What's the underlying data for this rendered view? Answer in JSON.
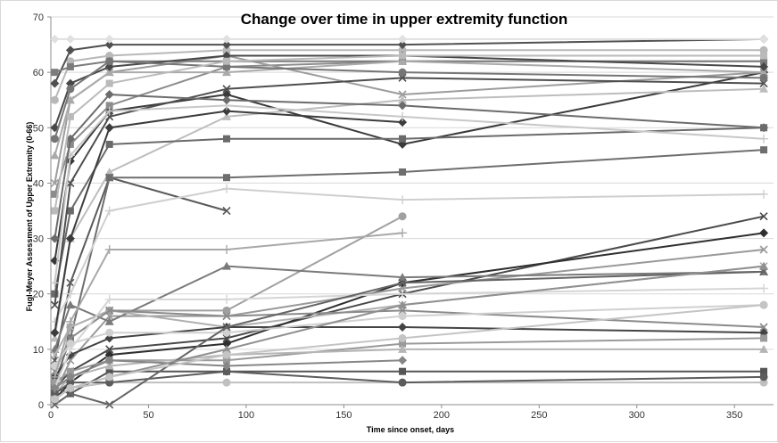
{
  "chart_data": {
    "type": "line",
    "title": "Change over time in upper extremity function",
    "xlabel": "Time since onset, days",
    "ylabel": "Fugl-Meyer Assessment of Upper Extremity (0-66)",
    "xlim": [
      0,
      370
    ],
    "ylim": [
      0,
      70
    ],
    "xticks": [
      0,
      50,
      100,
      150,
      200,
      250,
      300,
      350
    ],
    "yticks": [
      0,
      10,
      20,
      30,
      40,
      50,
      60,
      70
    ],
    "grid": "horizontal",
    "legend": "none",
    "series": [
      {
        "color": "#3a3a3a",
        "marker": "diamond",
        "points": [
          [
            2,
            26
          ],
          [
            10,
            44
          ],
          [
            30,
            53
          ],
          [
            90,
            56
          ],
          [
            180,
            47
          ],
          [
            365,
            60
          ]
        ]
      },
      {
        "color": "#8c8c8c",
        "marker": "square",
        "points": [
          [
            2,
            38
          ],
          [
            10,
            47
          ],
          [
            30,
            54
          ],
          [
            90,
            61
          ],
          [
            180,
            62
          ],
          [
            365,
            62
          ]
        ]
      },
      {
        "color": "#bdbdbd",
        "marker": "triangle",
        "points": [
          [
            2,
            12
          ],
          [
            10,
            30
          ],
          [
            30,
            42
          ],
          [
            90,
            52
          ],
          [
            180,
            55
          ],
          [
            365,
            57
          ]
        ]
      },
      {
        "color": "#5a5a5a",
        "marker": "x",
        "points": [
          [
            2,
            8
          ],
          [
            10,
            22
          ],
          [
            30,
            41
          ],
          [
            90,
            35
          ]
        ]
      },
      {
        "color": "#a0a0a0",
        "marker": "circle",
        "points": [
          [
            2,
            2
          ],
          [
            10,
            14
          ],
          [
            30,
            17
          ],
          [
            90,
            17
          ],
          [
            180,
            34
          ]
        ]
      },
      {
        "color": "#6e6e6e",
        "marker": "square",
        "points": [
          [
            2,
            4
          ],
          [
            10,
            12
          ],
          [
            30,
            41
          ],
          [
            90,
            41
          ],
          [
            180,
            42
          ],
          [
            365,
            46
          ]
        ]
      },
      {
        "color": "#cfcfcf",
        "marker": "plus",
        "points": [
          [
            2,
            15
          ],
          [
            10,
            20
          ],
          [
            30,
            35
          ],
          [
            90,
            39
          ],
          [
            180,
            37
          ],
          [
            365,
            38
          ]
        ]
      },
      {
        "color": "#4a4a4a",
        "marker": "x",
        "points": [
          [
            2,
            3
          ],
          [
            10,
            6
          ],
          [
            30,
            10
          ],
          [
            90,
            12
          ],
          [
            180,
            20
          ],
          [
            365,
            34
          ]
        ]
      },
      {
        "color": "#2f2f2f",
        "marker": "diamond",
        "points": [
          [
            2,
            1
          ],
          [
            10,
            4
          ],
          [
            30,
            9
          ],
          [
            90,
            11
          ],
          [
            180,
            22
          ],
          [
            365,
            31
          ]
        ]
      },
      {
        "color": "#999999",
        "marker": "x",
        "points": [
          [
            2,
            2
          ],
          [
            10,
            8
          ],
          [
            30,
            16
          ],
          [
            90,
            16
          ],
          [
            180,
            21
          ],
          [
            365,
            28
          ]
        ]
      },
      {
        "color": "#7a7a7a",
        "marker": "triangle",
        "points": [
          [
            2,
            10
          ],
          [
            10,
            18
          ],
          [
            30,
            15
          ],
          [
            90,
            25
          ],
          [
            180,
            23
          ],
          [
            365,
            24
          ]
        ]
      },
      {
        "color": "#b0b0b0",
        "marker": "x",
        "points": [
          [
            2,
            9
          ],
          [
            10,
            14
          ],
          [
            30,
            17
          ],
          [
            90,
            14
          ],
          [
            180,
            18
          ],
          [
            365,
            25
          ]
        ]
      },
      {
        "color": "#555555",
        "marker": "square",
        "points": [
          [
            2,
            3
          ],
          [
            10,
            2
          ],
          [
            30,
            6
          ],
          [
            90,
            6
          ],
          [
            180,
            6
          ],
          [
            365,
            6
          ]
        ]
      },
      {
        "color": "#c0c0c0",
        "marker": "circle",
        "points": [
          [
            2,
            1
          ],
          [
            10,
            3
          ],
          [
            30,
            4
          ],
          [
            90,
            4
          ],
          [
            180,
            4
          ],
          [
            365,
            4
          ]
        ]
      },
      {
        "color": "#444444",
        "marker": "diamond",
        "points": [
          [
            2,
            5
          ],
          [
            10,
            9
          ],
          [
            30,
            12
          ],
          [
            90,
            14
          ],
          [
            180,
            14
          ],
          [
            365,
            13
          ]
        ]
      },
      {
        "color": "#8a8a8a",
        "marker": "x",
        "points": [
          [
            2,
            6
          ],
          [
            10,
            12
          ],
          [
            30,
            17
          ],
          [
            90,
            16
          ],
          [
            180,
            17
          ],
          [
            365,
            14
          ]
        ]
      },
      {
        "color": "#d0d0d0",
        "marker": "circle",
        "points": [
          [
            2,
            7
          ],
          [
            10,
            11
          ],
          [
            30,
            13
          ],
          [
            90,
            13
          ],
          [
            180,
            16
          ],
          [
            365,
            18
          ]
        ]
      },
      {
        "color": "#6a6a6a",
        "marker": "square",
        "points": [
          [
            2,
            20
          ],
          [
            10,
            35
          ],
          [
            30,
            47
          ],
          [
            90,
            48
          ],
          [
            180,
            48
          ],
          [
            365,
            50
          ]
        ]
      },
      {
        "color": "#3c3c3c",
        "marker": "diamond",
        "points": [
          [
            2,
            13
          ],
          [
            10,
            30
          ],
          [
            30,
            50
          ],
          [
            90,
            53
          ],
          [
            180,
            51
          ]
        ]
      },
      {
        "color": "#9c9c9c",
        "marker": "x",
        "points": [
          [
            2,
            40
          ],
          [
            10,
            55
          ],
          [
            30,
            60
          ],
          [
            90,
            63
          ],
          [
            180,
            56
          ],
          [
            365,
            60
          ]
        ]
      },
      {
        "color": "#b8b8b8",
        "marker": "circle",
        "points": [
          [
            2,
            55
          ],
          [
            10,
            62
          ],
          [
            30,
            63
          ],
          [
            90,
            64
          ],
          [
            180,
            64
          ],
          [
            365,
            64
          ]
        ]
      },
      {
        "color": "#505050",
        "marker": "diamond",
        "points": [
          [
            2,
            58
          ],
          [
            10,
            64
          ],
          [
            30,
            65
          ],
          [
            90,
            65
          ],
          [
            180,
            65
          ],
          [
            365,
            66
          ]
        ]
      },
      {
        "color": "#7c7c7c",
        "marker": "square",
        "points": [
          [
            2,
            60
          ],
          [
            10,
            61
          ],
          [
            30,
            62
          ],
          [
            90,
            62
          ],
          [
            180,
            62
          ],
          [
            365,
            62
          ]
        ]
      },
      {
        "color": "#aaaaaa",
        "marker": "triangle",
        "points": [
          [
            2,
            45
          ],
          [
            10,
            55
          ],
          [
            30,
            60
          ],
          [
            90,
            60
          ],
          [
            180,
            62
          ],
          [
            365,
            60
          ]
        ]
      },
      {
        "color": "#e0e0e0",
        "marker": "diamond",
        "points": [
          [
            2,
            66
          ],
          [
            10,
            66
          ],
          [
            30,
            66
          ],
          [
            90,
            66
          ],
          [
            180,
            66
          ],
          [
            365,
            66
          ]
        ]
      },
      {
        "color": "#4e4e4e",
        "marker": "x",
        "points": [
          [
            2,
            18
          ],
          [
            10,
            40
          ],
          [
            30,
            52
          ],
          [
            90,
            57
          ],
          [
            180,
            59
          ],
          [
            365,
            58
          ]
        ]
      },
      {
        "color": "#c8c8c8",
        "marker": "plus",
        "points": [
          [
            2,
            22
          ],
          [
            10,
            45
          ],
          [
            30,
            53
          ],
          [
            90,
            54
          ],
          [
            180,
            52
          ],
          [
            365,
            48
          ]
        ]
      },
      {
        "color": "#6c6c6c",
        "marker": "diamond",
        "points": [
          [
            2,
            30
          ],
          [
            10,
            48
          ],
          [
            30,
            56
          ],
          [
            90,
            55
          ],
          [
            180,
            54
          ],
          [
            365,
            50
          ]
        ]
      },
      {
        "color": "#9a9a9a",
        "marker": "square",
        "points": [
          [
            2,
            4
          ],
          [
            10,
            6
          ],
          [
            30,
            8
          ],
          [
            90,
            8
          ],
          [
            180,
            11
          ],
          [
            365,
            12
          ]
        ]
      },
      {
        "color": "#b5b5b5",
        "marker": "triangle",
        "points": [
          [
            2,
            2
          ],
          [
            10,
            5
          ],
          [
            30,
            7
          ],
          [
            90,
            9
          ],
          [
            180,
            10
          ],
          [
            365,
            10
          ]
        ]
      },
      {
        "color": "#5c5c5c",
        "marker": "circle",
        "points": [
          [
            2,
            2
          ],
          [
            10,
            4
          ],
          [
            30,
            4
          ],
          [
            90,
            6
          ],
          [
            180,
            4
          ],
          [
            365,
            5
          ]
        ]
      },
      {
        "color": "#d5d5d5",
        "marker": "plus",
        "points": [
          [
            2,
            3
          ],
          [
            10,
            10
          ],
          [
            30,
            19
          ],
          [
            90,
            19
          ],
          [
            180,
            20
          ],
          [
            365,
            21
          ]
        ]
      },
      {
        "color": "#868686",
        "marker": "diamond",
        "points": [
          [
            2,
            3
          ],
          [
            10,
            5
          ],
          [
            30,
            8
          ],
          [
            90,
            7
          ],
          [
            180,
            8
          ]
        ]
      },
      {
        "color": "#a8a8a8",
        "marker": "plus",
        "points": [
          [
            2,
            5
          ],
          [
            10,
            15
          ],
          [
            30,
            28
          ],
          [
            90,
            28
          ],
          [
            180,
            31
          ]
        ]
      },
      {
        "color": "#484848",
        "marker": "diamond",
        "points": [
          [
            2,
            50
          ],
          [
            10,
            58
          ],
          [
            30,
            61
          ],
          [
            90,
            63
          ],
          [
            180,
            63
          ],
          [
            365,
            61
          ]
        ]
      },
      {
        "color": "#767676",
        "marker": "circle",
        "points": [
          [
            2,
            48
          ],
          [
            10,
            57
          ],
          [
            30,
            62
          ],
          [
            90,
            61
          ],
          [
            180,
            60
          ],
          [
            365,
            59
          ]
        ]
      },
      {
        "color": "#bababa",
        "marker": "square",
        "points": [
          [
            2,
            35
          ],
          [
            10,
            52
          ],
          [
            30,
            58
          ],
          [
            90,
            62
          ],
          [
            180,
            63
          ],
          [
            365,
            63
          ]
        ]
      },
      {
        "color": "#646464",
        "marker": "x",
        "points": [
          [
            2,
            0
          ],
          [
            10,
            2
          ],
          [
            30,
            0
          ],
          [
            90,
            14
          ],
          [
            180,
            22
          ],
          [
            365,
            24
          ]
        ]
      },
      {
        "color": "#909090",
        "marker": "triangle",
        "points": [
          [
            2,
            1
          ],
          [
            10,
            3
          ],
          [
            30,
            5
          ],
          [
            90,
            10
          ],
          [
            180,
            18
          ],
          [
            365,
            25
          ]
        ]
      },
      {
        "color": "#c4c4c4",
        "marker": "circle",
        "points": [
          [
            2,
            1
          ],
          [
            10,
            3
          ],
          [
            30,
            5
          ],
          [
            90,
            9
          ],
          [
            180,
            12
          ],
          [
            365,
            18
          ]
        ]
      }
    ]
  }
}
